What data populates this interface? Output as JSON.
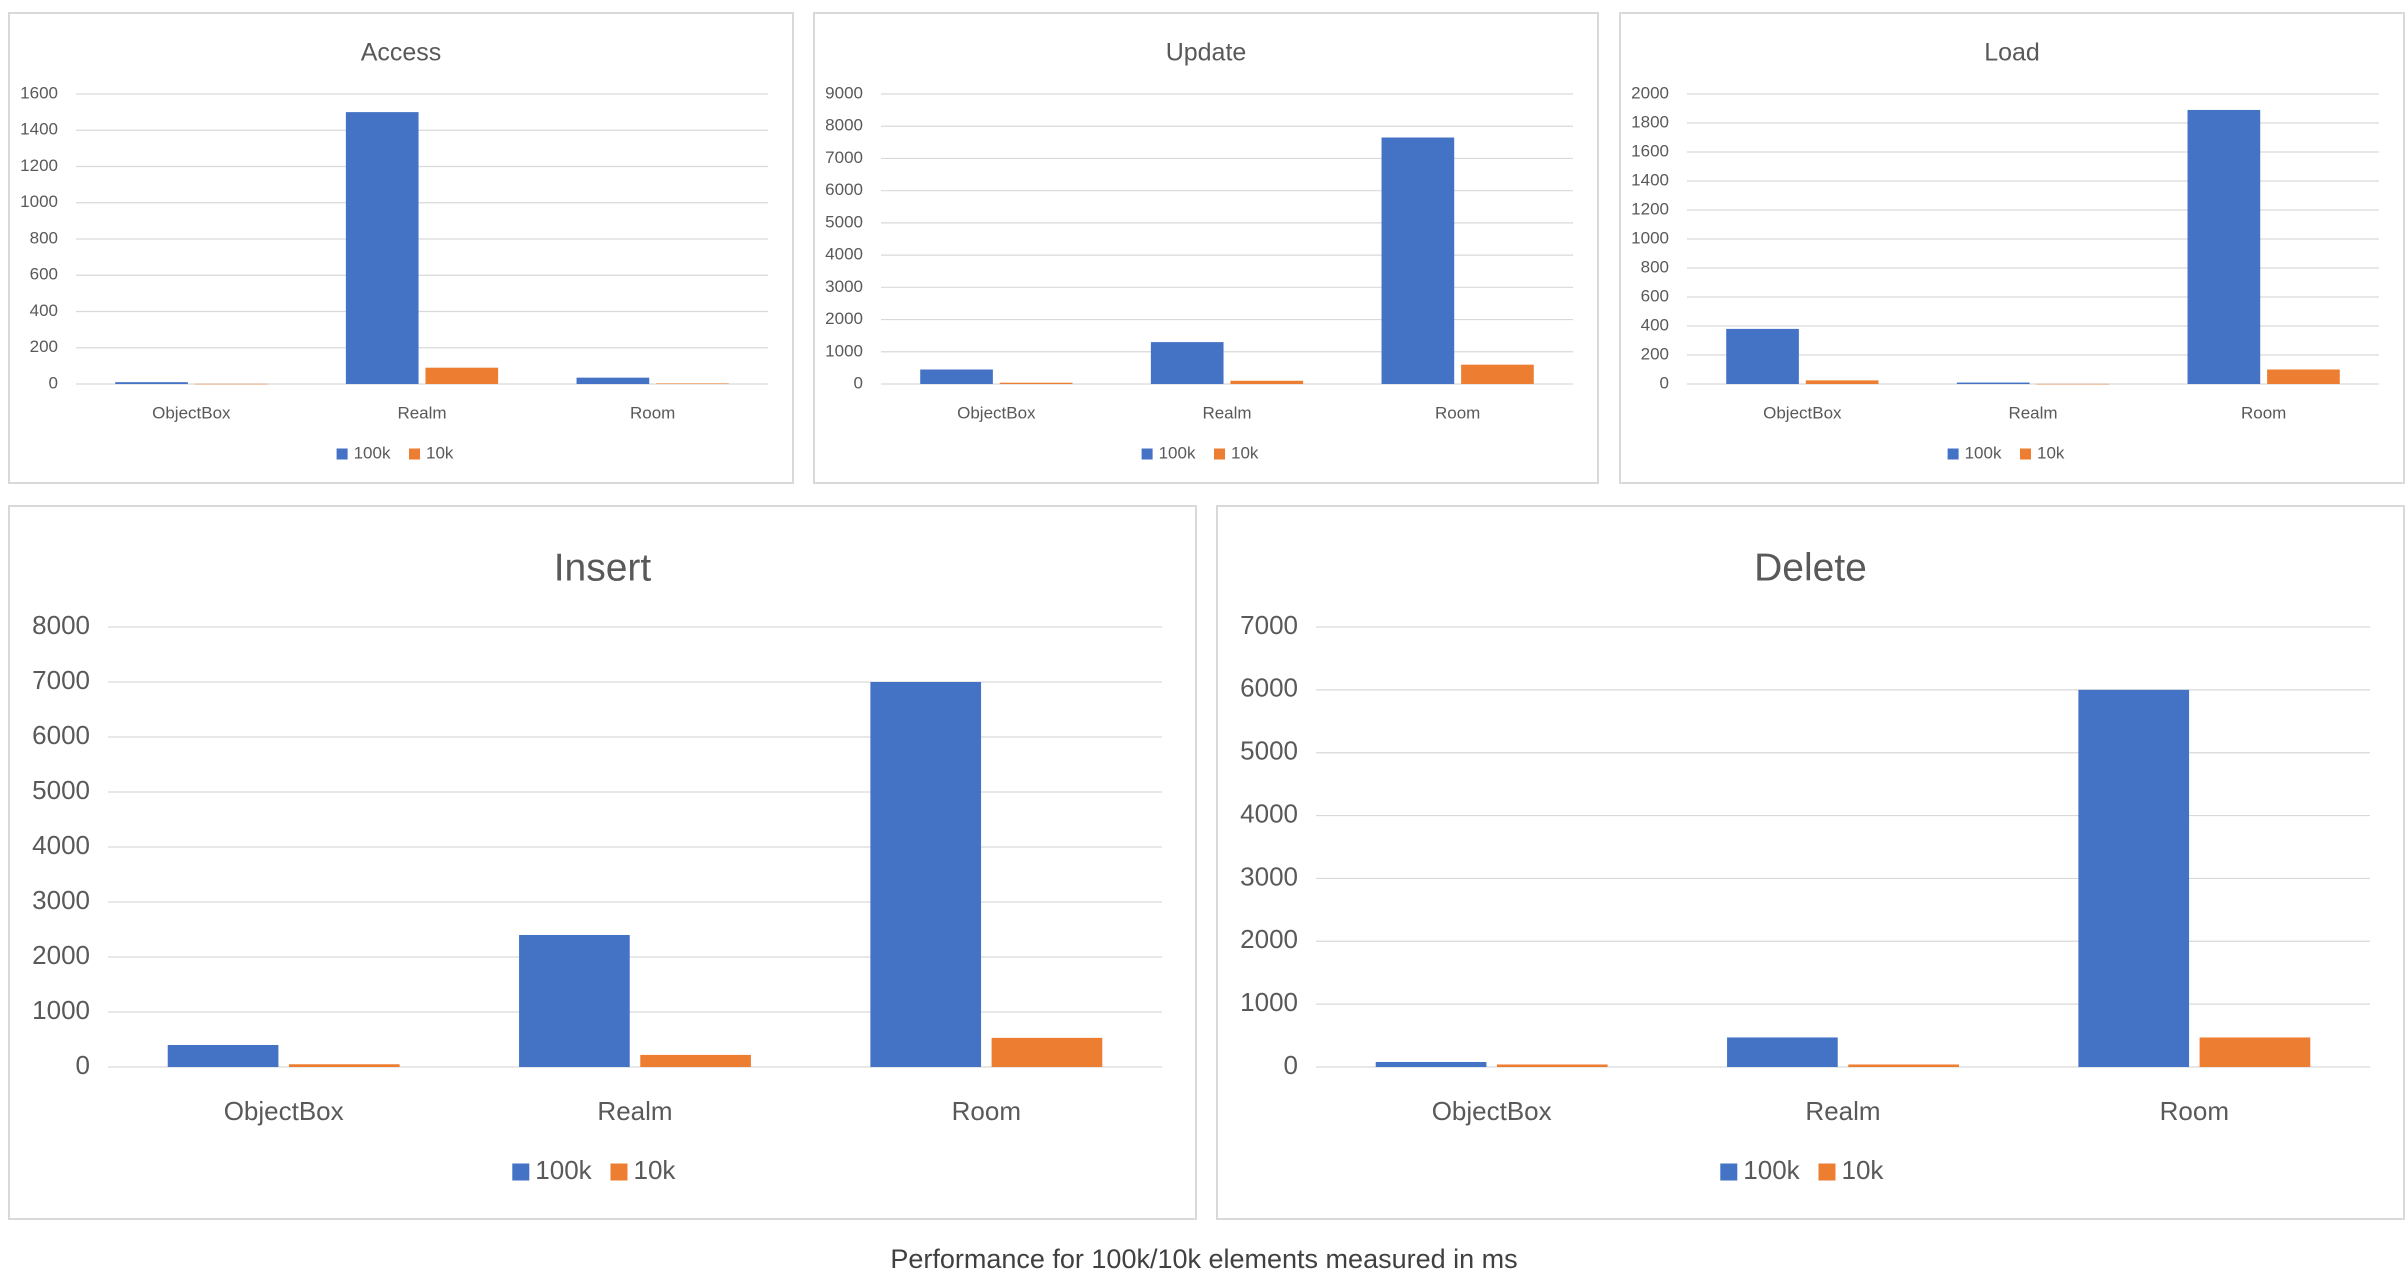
{
  "chart_data": [
    {
      "type": "bar",
      "title": "Access",
      "categories": [
        "ObjectBox",
        "Realm",
        "Room"
      ],
      "series": [
        {
          "name": "100k",
          "values": [
            10,
            1500,
            35
          ]
        },
        {
          "name": "10k",
          "values": [
            1,
            90,
            3
          ]
        }
      ],
      "ylim": [
        0,
        1600
      ],
      "yticks": [
        0,
        200,
        400,
        600,
        800,
        1000,
        1200,
        1400,
        1600
      ],
      "grid": true,
      "legend": "bottom"
    },
    {
      "type": "bar",
      "title": "Update",
      "categories": [
        "ObjectBox",
        "Realm",
        "Room"
      ],
      "series": [
        {
          "name": "100k",
          "values": [
            450,
            1300,
            7650
          ]
        },
        {
          "name": "10k",
          "values": [
            40,
            100,
            600
          ]
        }
      ],
      "ylim": [
        0,
        9000
      ],
      "yticks": [
        0,
        1000,
        2000,
        3000,
        4000,
        5000,
        6000,
        7000,
        8000,
        9000
      ],
      "grid": true,
      "legend": "bottom"
    },
    {
      "type": "bar",
      "title": "Load",
      "categories": [
        "ObjectBox",
        "Realm",
        "Room"
      ],
      "series": [
        {
          "name": "100k",
          "values": [
            380,
            10,
            1890
          ]
        },
        {
          "name": "10k",
          "values": [
            25,
            1,
            100
          ]
        }
      ],
      "ylim": [
        0,
        2000
      ],
      "yticks": [
        0,
        200,
        400,
        600,
        800,
        1000,
        1200,
        1400,
        1600,
        1800,
        2000
      ],
      "grid": true,
      "legend": "bottom"
    },
    {
      "type": "bar",
      "title": "Insert",
      "categories": [
        "ObjectBox",
        "Realm",
        "Room"
      ],
      "series": [
        {
          "name": "100k",
          "values": [
            400,
            2400,
            7000
          ]
        },
        {
          "name": "10k",
          "values": [
            50,
            220,
            530
          ]
        }
      ],
      "ylim": [
        0,
        8000
      ],
      "yticks": [
        0,
        1000,
        2000,
        3000,
        4000,
        5000,
        6000,
        7000,
        8000
      ],
      "grid": true,
      "legend": "bottom"
    },
    {
      "type": "bar",
      "title": "Delete",
      "categories": [
        "ObjectBox",
        "Realm",
        "Room"
      ],
      "series": [
        {
          "name": "100k",
          "values": [
            80,
            470,
            6000
          ]
        },
        {
          "name": "10k",
          "values": [
            40,
            40,
            470
          ]
        }
      ],
      "ylim": [
        0,
        7000
      ],
      "yticks": [
        0,
        1000,
        2000,
        3000,
        4000,
        5000,
        6000,
        7000
      ],
      "grid": true,
      "legend": "bottom"
    }
  ],
  "colors": {
    "series_100k": "#4472c4",
    "series_10k": "#ed7d31",
    "grid": "#d9d9d9",
    "text": "#595959"
  },
  "caption": "Performance for 100k/10k elements measured in ms"
}
